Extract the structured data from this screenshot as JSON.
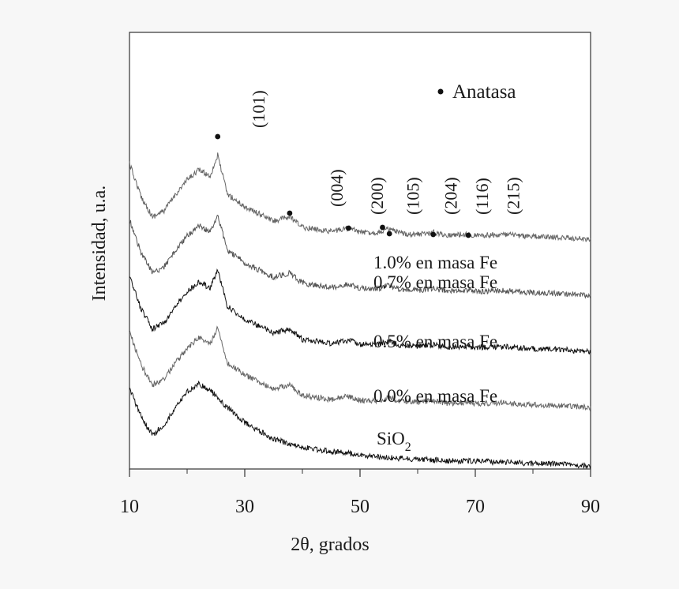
{
  "chart_data": {
    "type": "line",
    "title": "",
    "xlabel": "2θ, grados",
    "ylabel": "Intensidad, u.a.",
    "xlim": [
      10,
      90
    ],
    "xticks": [
      "10",
      "30",
      "50",
      "70",
      "90"
    ],
    "grid": false,
    "legend": {
      "position": "top-right",
      "marker": "•",
      "text": "Anatasa"
    },
    "series": [
      {
        "label": "1.0% en masa Fe",
        "label_parts": [
          "1.0% en masa Fe"
        ],
        "color": "#666666",
        "offset": 4,
        "x": [
          10,
          12,
          14,
          16,
          18,
          20,
          22,
          24,
          25.3,
          27,
          30,
          35,
          37.8,
          40,
          45,
          48,
          50,
          53,
          55,
          57,
          60,
          62.7,
          65,
          68.8,
          70,
          75,
          80,
          85,
          90
        ],
        "y": [
          1.9,
          1.1,
          0.6,
          0.75,
          1.15,
          1.5,
          1.75,
          1.6,
          2.1,
          1.15,
          0.85,
          0.5,
          0.6,
          0.35,
          0.25,
          0.33,
          0.23,
          0.22,
          0.3,
          0.2,
          0.18,
          0.22,
          0.16,
          0.18,
          0.15,
          0.17,
          0.12,
          0.1,
          0.05
        ]
      },
      {
        "label": "0.7% en masa Fe",
        "label_parts": [
          "0.7% en masa Fe"
        ],
        "color": "#555555",
        "offset": 3,
        "x": [
          10,
          12,
          14,
          16,
          18,
          20,
          22,
          24,
          25.3,
          27,
          30,
          35,
          37.8,
          40,
          45,
          48,
          50,
          53,
          55,
          57,
          60,
          62.7,
          65,
          68.8,
          70,
          75,
          80,
          85,
          90
        ],
        "y": [
          1.9,
          1.1,
          0.6,
          0.75,
          1.15,
          1.5,
          1.75,
          1.6,
          2.0,
          1.15,
          0.85,
          0.5,
          0.6,
          0.35,
          0.25,
          0.33,
          0.23,
          0.22,
          0.3,
          0.2,
          0.18,
          0.22,
          0.16,
          0.18,
          0.15,
          0.17,
          0.12,
          0.1,
          0.05
        ]
      },
      {
        "label": "0.5% en masa Fe",
        "label_parts": [
          "0.5% en masa Fe"
        ],
        "color": "#111111",
        "offset": 2,
        "x": [
          10,
          12,
          14,
          16,
          18,
          20,
          22,
          24,
          25.3,
          27,
          30,
          35,
          37.8,
          40,
          45,
          48,
          50,
          53,
          55,
          57,
          60,
          62.7,
          65,
          68.8,
          70,
          75,
          80,
          85,
          90
        ],
        "y": [
          1.9,
          1.1,
          0.6,
          0.75,
          1.15,
          1.5,
          1.75,
          1.6,
          2.05,
          1.15,
          0.85,
          0.5,
          0.6,
          0.35,
          0.25,
          0.33,
          0.23,
          0.22,
          0.3,
          0.2,
          0.18,
          0.22,
          0.16,
          0.18,
          0.15,
          0.17,
          0.12,
          0.1,
          0.05
        ]
      },
      {
        "label": "0.0% en masa Fe",
        "label_parts": [
          "0.0% en masa Fe"
        ],
        "color": "#666666",
        "offset": 1,
        "x": [
          10,
          12,
          14,
          16,
          18,
          20,
          22,
          24,
          25.3,
          27,
          30,
          35,
          37.8,
          40,
          45,
          48,
          50,
          53,
          55,
          57,
          60,
          62.7,
          65,
          68.8,
          70,
          75,
          80,
          85,
          90
        ],
        "y": [
          1.9,
          1.1,
          0.6,
          0.75,
          1.15,
          1.5,
          1.75,
          1.6,
          2.0,
          1.15,
          0.85,
          0.5,
          0.6,
          0.35,
          0.25,
          0.33,
          0.23,
          0.22,
          0.3,
          0.2,
          0.18,
          0.22,
          0.16,
          0.18,
          0.15,
          0.17,
          0.12,
          0.1,
          0.05
        ]
      },
      {
        "label": "SiO2",
        "label_parts": [
          "SiO",
          "2"
        ],
        "color": "#111111",
        "offset": 0,
        "x": [
          10,
          12,
          14,
          16,
          18,
          20,
          22,
          24,
          26,
          28,
          30,
          35,
          40,
          45,
          50,
          55,
          60,
          65,
          70,
          75,
          80,
          85,
          90
        ],
        "y": [
          1.9,
          1.2,
          0.75,
          1.0,
          1.4,
          1.8,
          2.0,
          1.85,
          1.55,
          1.3,
          1.05,
          0.65,
          0.45,
          0.35,
          0.27,
          0.2,
          0.16,
          0.13,
          0.11,
          0.09,
          0.06,
          0.04,
          0.0
        ]
      }
    ],
    "peaks": [
      {
        "hkl": "(101)",
        "x": 25.3,
        "label_x": 33.4
      },
      {
        "hkl": "(004)",
        "x": 37.8,
        "label_x": 47.0
      },
      {
        "hkl": "(200)",
        "x": 48.0,
        "label_x": 54.0
      },
      {
        "hkl": "(105)",
        "x": 53.9,
        "label_x": 60.2
      },
      {
        "hkl": "(204)",
        "x": 55.1,
        "label_x": 66.8
      },
      {
        "hkl": "(116)",
        "x": 62.7,
        "label_x": 72.2
      },
      {
        "hkl": "(215)",
        "x": 68.8,
        "label_x": 77.6
      }
    ]
  }
}
